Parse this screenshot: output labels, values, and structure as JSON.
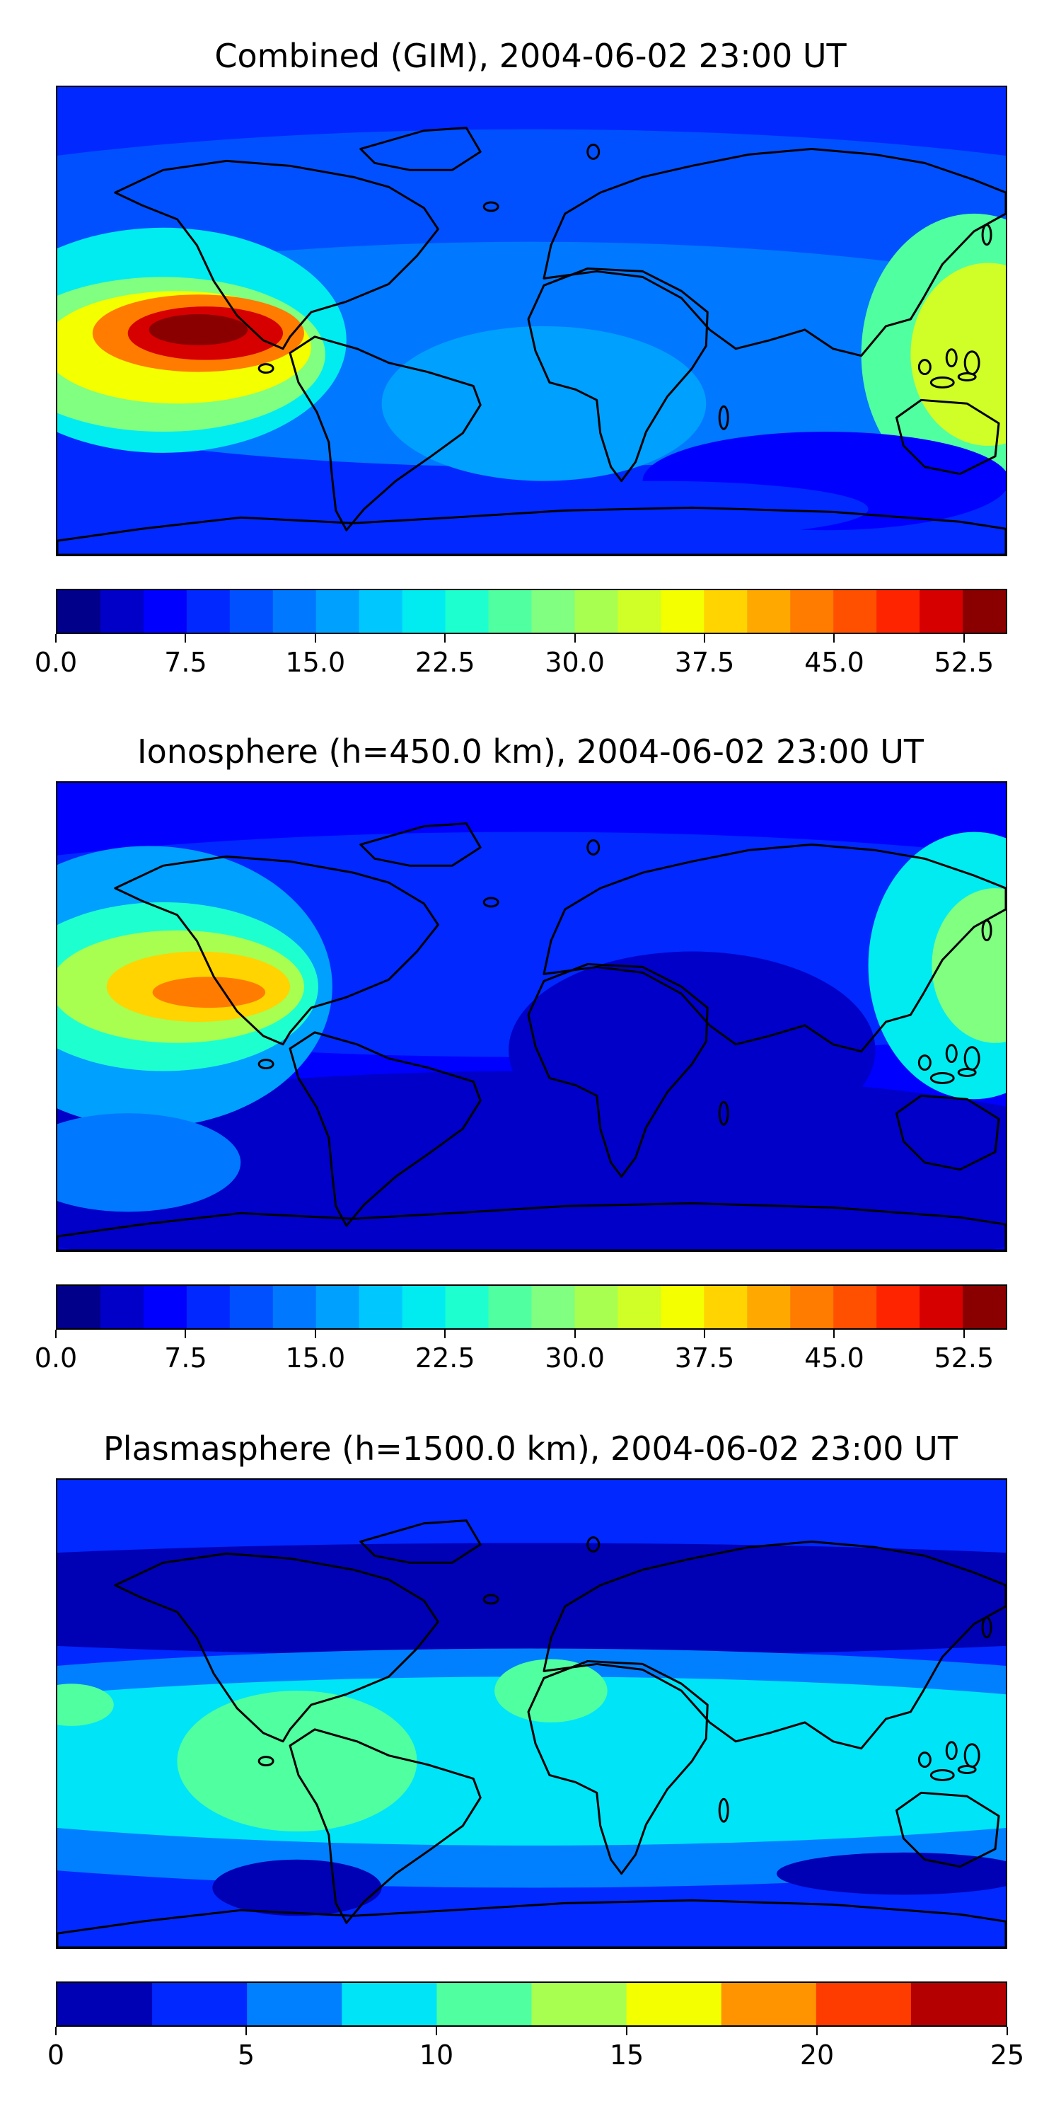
{
  "chart_data": [
    {
      "type": "heatmap",
      "title": "Combined (GIM), 2004-06-02 23:00 UT",
      "colorbar": {
        "min": 0,
        "max": 55,
        "step": 2.5,
        "ticks": [
          0,
          7.5,
          15,
          22.5,
          30,
          37.5,
          45,
          52.5
        ],
        "tick_labels": [
          "0.0",
          "7.5",
          "15.0",
          "22.5",
          "30.0",
          "37.5",
          "45.0",
          "52.5"
        ],
        "colors": [
          "#00008a",
          "#0000c8",
          "#0000ff",
          "#0028ff",
          "#0050ff",
          "#0078ff",
          "#00a0ff",
          "#00c8ff",
          "#00ecf0",
          "#1effd0",
          "#50ffa0",
          "#80ff80",
          "#a8ff50",
          "#d0ff28",
          "#f4ff00",
          "#ffd400",
          "#ffa800",
          "#ff7c00",
          "#ff5000",
          "#ff2400",
          "#d60000",
          "#8a0000"
        ]
      },
      "regions": [
        {
          "feature": "equatorial anomaly peak, eastern Pacific",
          "value": 52.5
        },
        {
          "feature": "western Pacific maximum",
          "value": 35
        },
        {
          "feature": "Africa / Indian Ocean",
          "value": 15
        },
        {
          "feature": "southern mid-latitudes minimum",
          "value": 5
        },
        {
          "feature": "polar regions",
          "value": 7.5
        }
      ]
    },
    {
      "type": "heatmap",
      "title": "Ionosphere  (h=450.0 km), 2004-06-02 23:00 UT",
      "colorbar": {
        "min": 0,
        "max": 55,
        "step": 2.5,
        "ticks": [
          0,
          7.5,
          15,
          22.5,
          30,
          37.5,
          45,
          52.5
        ],
        "tick_labels": [
          "0.0",
          "7.5",
          "15.0",
          "22.5",
          "30.0",
          "37.5",
          "45.0",
          "52.5"
        ]
      },
      "regions": [
        {
          "feature": "equatorial anomaly peak, eastern Pacific",
          "value": 42.5
        },
        {
          "feature": "western Pacific maximum",
          "value": 25
        },
        {
          "feature": "Africa / Indian Ocean",
          "value": 5
        },
        {
          "feature": "South Atlantic minimum",
          "value": 2.5
        }
      ]
    },
    {
      "type": "heatmap",
      "title": "Plasmasphere (h=1500.0 km), 2004-06-02 23:00 UT",
      "colorbar": {
        "min": 0,
        "max": 25,
        "step": 2.5,
        "ticks": [
          0,
          5,
          10,
          15,
          20,
          25
        ],
        "tick_labels": [
          "0",
          "5",
          "10",
          "15",
          "20",
          "25"
        ],
        "colors": [
          "#0000b4",
          "#0028ff",
          "#0080ff",
          "#00e4f8",
          "#50ffa0",
          "#a8ff50",
          "#f4ff00",
          "#ff9400",
          "#ff3c00",
          "#b40000"
        ]
      },
      "regions": [
        {
          "feature": "equatorial band (South America, Africa)",
          "value": 11
        },
        {
          "feature": "tropical band",
          "value": 8.5
        },
        {
          "feature": "mid-latitudes",
          "value": 4
        },
        {
          "feature": "polar regions",
          "value": 1.5
        }
      ]
    }
  ]
}
